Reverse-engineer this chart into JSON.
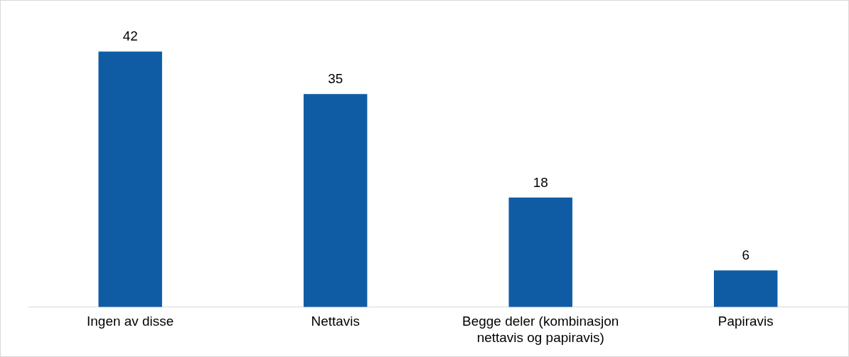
{
  "chart_data": {
    "type": "bar",
    "categories": [
      "Ingen av disse",
      "Nettavis",
      "Begge deler (kombinasjon nettavis og papiravis)",
      "Papiravis"
    ],
    "values": [
      42,
      35,
      18,
      6
    ],
    "color": "#0f5ca5",
    "data_labels": true,
    "legend": false
  }
}
